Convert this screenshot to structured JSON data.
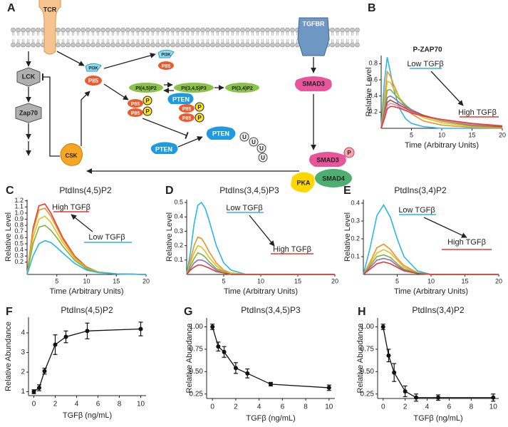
{
  "diagram": {
    "panel": "A",
    "nodes": [
      "TCR",
      "LCK",
      "Zap70",
      "CSK",
      "PI3K",
      "P85",
      "PI3K",
      "P85",
      "PI(4,5)P2",
      "PI(3,4,5)P3",
      "PI(3,4)P2",
      "PTEN",
      "P85",
      "P85",
      "P",
      "P",
      "P85",
      "P85",
      "P",
      "P",
      "PTEN",
      "PTEN",
      "U",
      "U",
      "U",
      "U",
      "TGFBR",
      "SMAD3",
      "SMAD3",
      "P",
      "PKA",
      "SMAD4"
    ]
  },
  "chart_data": [
    {
      "panel": "B",
      "type": "line",
      "title": "P-ZAP70",
      "x_label": "Time (Arbitrary Units)",
      "y_label": "Relative Level",
      "x": [
        0,
        0.5,
        1,
        1.5,
        2,
        3,
        4,
        5,
        7,
        10,
        15,
        20
      ],
      "series": [
        {
          "color": "#29b6e8",
          "values": [
            0,
            0.55,
            0.88,
            0.7,
            0.5,
            0.25,
            0.12,
            0.06,
            0.02,
            0,
            0,
            0
          ]
        },
        {
          "color": "#f0902a",
          "values": [
            0,
            0.35,
            0.7,
            0.65,
            0.55,
            0.38,
            0.26,
            0.18,
            0.09,
            0.04,
            0.01,
            0
          ]
        },
        {
          "color": "#e0c020",
          "values": [
            0,
            0.28,
            0.58,
            0.57,
            0.5,
            0.38,
            0.29,
            0.22,
            0.13,
            0.07,
            0.02,
            0.01
          ]
        },
        {
          "color": "#7cb342",
          "values": [
            0,
            0.22,
            0.47,
            0.48,
            0.44,
            0.36,
            0.29,
            0.23,
            0.15,
            0.09,
            0.03,
            0.01
          ]
        },
        {
          "color": "#8e6cc0",
          "values": [
            0,
            0.18,
            0.38,
            0.4,
            0.38,
            0.32,
            0.27,
            0.23,
            0.16,
            0.1,
            0.04,
            0.02
          ]
        },
        {
          "color": "#a0522d",
          "values": [
            0,
            0.15,
            0.32,
            0.35,
            0.33,
            0.29,
            0.25,
            0.21,
            0.16,
            0.1,
            0.05,
            0.02
          ]
        },
        {
          "color": "#e88fb8",
          "values": [
            0,
            0.13,
            0.28,
            0.31,
            0.3,
            0.27,
            0.23,
            0.2,
            0.15,
            0.1,
            0.05,
            0.03
          ]
        },
        {
          "color": "#e53935",
          "values": [
            0,
            0.11,
            0.24,
            0.27,
            0.27,
            0.25,
            0.22,
            0.19,
            0.15,
            0.11,
            0.06,
            0.03
          ]
        }
      ],
      "xlim": [
        0,
        20
      ],
      "xticks": [
        5,
        10,
        15,
        20
      ],
      "ylim": [
        0,
        0.9
      ],
      "yticks": [
        0.2,
        0.4,
        0.6,
        0.8
      ],
      "annotations": [
        "Low TGFβ",
        "High TGFβ"
      ]
    },
    {
      "panel": "C",
      "type": "line",
      "title": "PtdIns(4,5)P2",
      "x_label": "Time (Arbitrary Units)",
      "y_label": "Relative Level",
      "x": [
        0,
        1,
        2,
        3,
        4,
        5,
        6,
        8,
        10,
        12,
        15,
        20
      ],
      "series": [
        {
          "color": "#e53935",
          "values": [
            0,
            0.75,
            1.12,
            1.15,
            1.0,
            0.8,
            0.6,
            0.3,
            0.12,
            0.04,
            0.01,
            0
          ]
        },
        {
          "color": "#f0902a",
          "values": [
            0,
            0.7,
            1.05,
            1.08,
            0.95,
            0.76,
            0.57,
            0.28,
            0.11,
            0.04,
            0.01,
            0
          ]
        },
        {
          "color": "#e0c020",
          "values": [
            0,
            0.6,
            0.9,
            0.95,
            0.85,
            0.68,
            0.52,
            0.26,
            0.1,
            0.04,
            0.01,
            0
          ]
        },
        {
          "color": "#7cb342",
          "values": [
            0,
            0.5,
            0.77,
            0.8,
            0.72,
            0.6,
            0.46,
            0.23,
            0.09,
            0.03,
            0.01,
            0
          ]
        },
        {
          "color": "#29b6e8",
          "values": [
            0,
            0.3,
            0.5,
            0.55,
            0.52,
            0.44,
            0.35,
            0.18,
            0.07,
            0.03,
            0.01,
            0
          ]
        }
      ],
      "xlim": [
        0,
        20
      ],
      "xticks": [
        5,
        10,
        15,
        20
      ],
      "ylim": [
        0,
        1.22
      ],
      "yticks": [
        0.2,
        0.3,
        0.4,
        0.5,
        0.6,
        0.7,
        0.8,
        0.9,
        {
          "value": 1,
          "label": "1.0"
        },
        1.1,
        1.2
      ],
      "annotations": [
        "High TGFβ",
        "Low TGFβ"
      ]
    },
    {
      "panel": "D",
      "type": "line",
      "title": "PtdIns(3,4,5)P3",
      "x_label": "Time (Arbitrary Units)",
      "y_label": "Relative Level",
      "x": [
        0,
        0.5,
        1,
        1.5,
        2,
        2.5,
        3,
        4,
        5,
        6,
        8,
        10,
        20
      ],
      "series": [
        {
          "color": "#29b6e8",
          "values": [
            0,
            0.15,
            0.35,
            0.48,
            0.5,
            0.46,
            0.38,
            0.2,
            0.08,
            0.03,
            0,
            0,
            0
          ]
        },
        {
          "color": "#f0902a",
          "values": [
            0,
            0.1,
            0.2,
            0.26,
            0.25,
            0.21,
            0.16,
            0.08,
            0.03,
            0.01,
            0,
            0,
            0
          ]
        },
        {
          "color": "#e0c020",
          "values": [
            0,
            0.08,
            0.15,
            0.2,
            0.19,
            0.16,
            0.12,
            0.06,
            0.02,
            0.01,
            0,
            0,
            0
          ]
        },
        {
          "color": "#7cb342",
          "values": [
            0,
            0.06,
            0.11,
            0.15,
            0.14,
            0.12,
            0.09,
            0.04,
            0.02,
            0,
            0,
            0,
            0
          ]
        },
        {
          "color": "#8e6cc0",
          "values": [
            0,
            0.04,
            0.08,
            0.1,
            0.1,
            0.09,
            0.07,
            0.03,
            0.01,
            0,
            0,
            0,
            0
          ]
        },
        {
          "color": "#e53935",
          "values": [
            0,
            0.03,
            0.05,
            0.065,
            0.065,
            0.055,
            0.045,
            0.02,
            0.01,
            0,
            0,
            0,
            0
          ]
        }
      ],
      "xlim": [
        0,
        20
      ],
      "xticks": [
        5,
        10,
        15,
        20
      ],
      "ylim": [
        0,
        0.52
      ],
      "yticks": [
        0.1,
        0.2,
        0.3,
        0.4,
        0.5
      ],
      "annotations": [
        "Low TGFβ",
        "High TGFβ"
      ]
    },
    {
      "panel": "E",
      "type": "line",
      "title": "PtdIns(3,4)P2",
      "x_label": "Time (Arbitrary Units)",
      "y_label": "Relative Level",
      "x": [
        0,
        1,
        2,
        3,
        4,
        5,
        6,
        8,
        10,
        12,
        20
      ],
      "series": [
        {
          "color": "#29b6e8",
          "values": [
            0,
            0.15,
            0.33,
            0.39,
            0.32,
            0.2,
            0.1,
            0.02,
            0,
            0,
            0
          ]
        },
        {
          "color": "#f0902a",
          "values": [
            0,
            0.07,
            0.15,
            0.17,
            0.14,
            0.09,
            0.05,
            0.01,
            0,
            0,
            0
          ]
        },
        {
          "color": "#e0c020",
          "values": [
            0,
            0.06,
            0.12,
            0.14,
            0.12,
            0.08,
            0.04,
            0.01,
            0,
            0,
            0
          ]
        },
        {
          "color": "#7cb342",
          "values": [
            0,
            0.05,
            0.1,
            0.11,
            0.095,
            0.06,
            0.03,
            0.01,
            0,
            0,
            0
          ]
        },
        {
          "color": "#8e6cc0",
          "values": [
            0,
            0.04,
            0.08,
            0.09,
            0.08,
            0.05,
            0.025,
            0.005,
            0,
            0,
            0
          ]
        },
        {
          "color": "#e53935",
          "values": [
            0,
            0.03,
            0.06,
            0.07,
            0.06,
            0.04,
            0.02,
            0.005,
            0,
            0,
            0
          ]
        }
      ],
      "xlim": [
        0,
        20
      ],
      "xticks": [
        5,
        10,
        15,
        20
      ],
      "ylim": [
        0,
        0.42
      ],
      "yticks": [
        0.1,
        0.2,
        0.3,
        0.4
      ],
      "annotations": [
        "Low TGFβ",
        "High TGFβ"
      ]
    },
    {
      "panel": "F",
      "type": "line",
      "title": "PtdIns(4,5)P2",
      "x_label": "TGFβ (ng/mL)",
      "y_label": "Relative Abundance",
      "x": [
        0,
        0.5,
        1,
        2,
        3,
        5,
        10
      ],
      "values": [
        1,
        1.2,
        2.05,
        3.4,
        3.8,
        4.1,
        4.2
      ],
      "errors": [
        0.1,
        0.15,
        0.15,
        0.5,
        0.3,
        0.4,
        0.35
      ],
      "color": "#111111",
      "xlim": [
        -0.5,
        10.5
      ],
      "xticks": [
        0,
        2,
        4,
        6,
        8,
        10
      ],
      "ylim": [
        0.8,
        4.8
      ],
      "yticks": [
        1,
        2,
        3,
        4
      ]
    },
    {
      "panel": "G",
      "type": "line",
      "title": "PtdIns(3,4,5)P3",
      "x_label": "TGFβ (ng/mL)",
      "y_label": "Relative Abundance",
      "x": [
        0,
        0.5,
        1,
        2,
        3,
        5,
        10
      ],
      "values": [
        1,
        0.78,
        0.72,
        0.54,
        0.48,
        0.36,
        0.32
      ],
      "errors": [
        0.03,
        0.05,
        0.06,
        0.06,
        0.05,
        0.02,
        0.03
      ],
      "color": "#111111",
      "xlim": [
        -0.5,
        10.5
      ],
      "xticks": [
        0,
        2,
        4,
        6,
        8,
        10
      ],
      "ylim": [
        0.2,
        1.1
      ],
      "yticks": [
        0.25,
        {
          "value": 0.5,
          "label": "0.50"
        },
        0.75,
        {
          "value": 1,
          "label": "1.00"
        }
      ]
    },
    {
      "panel": "H",
      "type": "line",
      "title": "PtdIns(3,4)P2",
      "x_label": "TGFβ (ng/mL)",
      "y_label": "Relative Abundance",
      "x": [
        0,
        0.5,
        1,
        2,
        3,
        5,
        10
      ],
      "values": [
        1,
        0.68,
        0.49,
        0.28,
        0.21,
        0.21,
        0.21
      ],
      "errors": [
        0.03,
        0.07,
        0.1,
        0.06,
        0.04,
        0.03,
        0.04
      ],
      "color": "#111111",
      "xlim": [
        -0.5,
        10.5
      ],
      "xticks": [
        0,
        2,
        4,
        6,
        8,
        10
      ],
      "ylim": [
        0.2,
        1.1
      ],
      "yticks": [
        0.25,
        {
          "value": 0.5,
          "label": "0.50"
        },
        0.75,
        {
          "value": 1,
          "label": "1.00"
        }
      ]
    }
  ]
}
